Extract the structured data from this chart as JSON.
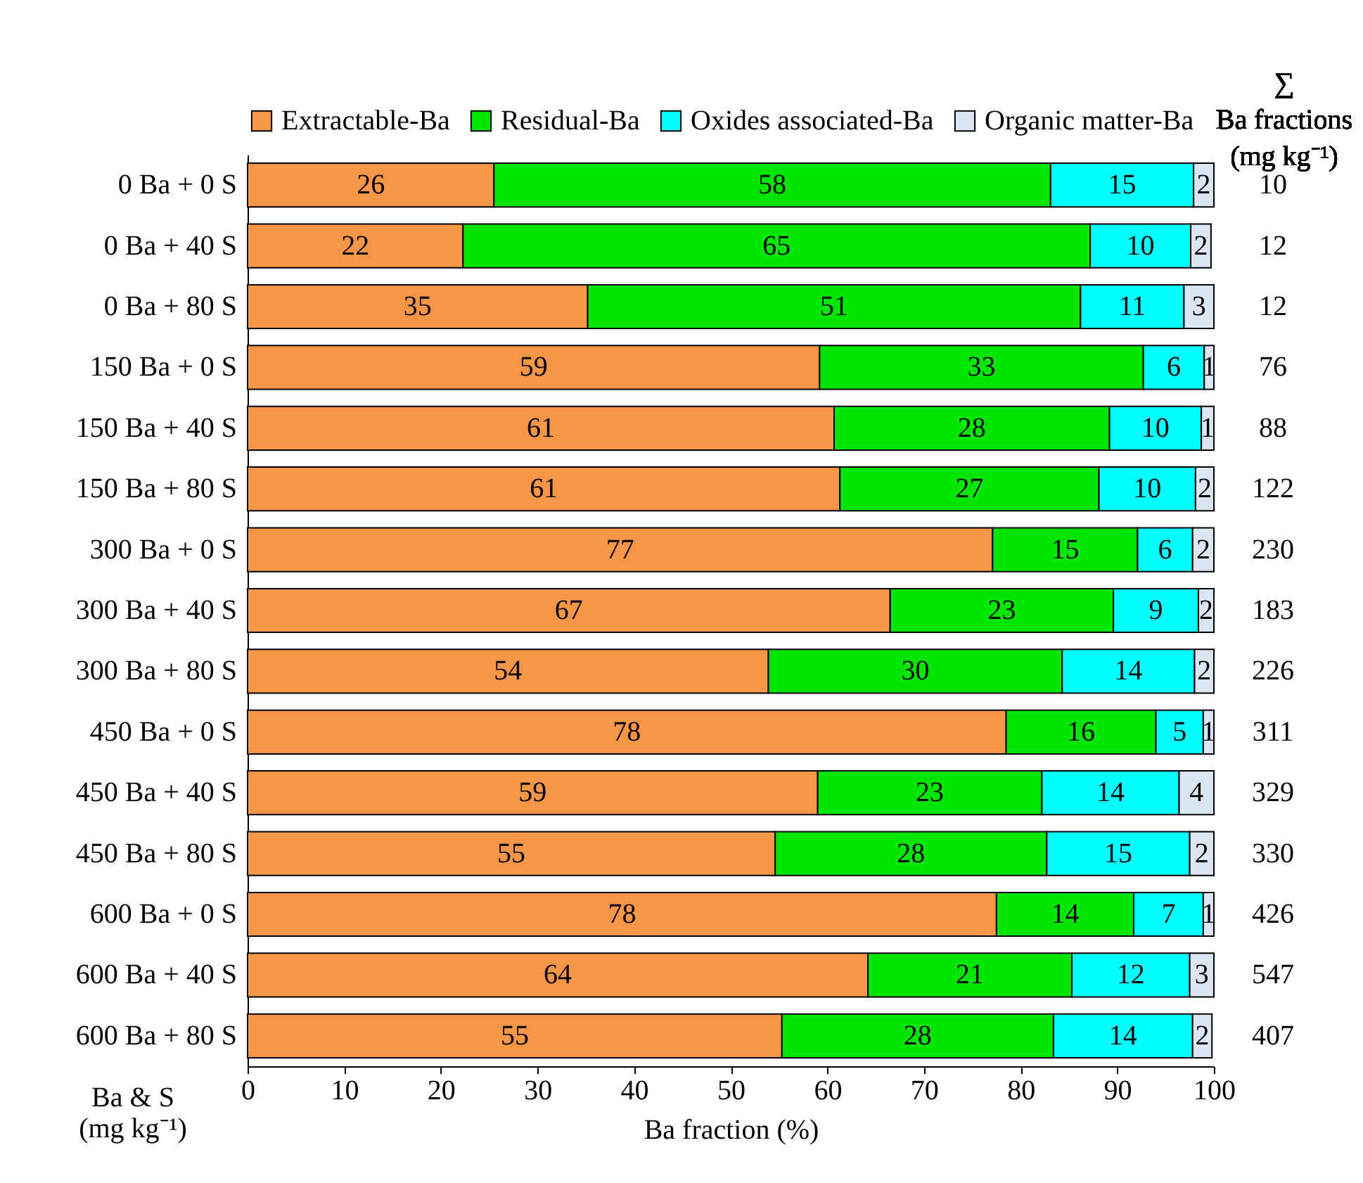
{
  "chart_data": {
    "type": "bar",
    "orientation": "horizontal",
    "stacked": true,
    "categories": [
      "0 Ba + 0 S",
      "0 Ba + 40 S",
      "0 Ba + 80 S",
      "150 Ba + 0 S",
      "150 Ba + 40 S",
      "150 Ba + 80 S",
      "300 Ba + 0 S",
      "300 Ba + 40 S",
      "300 Ba + 80 S",
      "450 Ba + 0 S",
      "450 Ba + 40 S",
      "450 Ba + 80 S",
      "600 Ba + 0 S",
      "600 Ba + 40 S",
      "600 Ba + 80 S"
    ],
    "series": [
      {
        "name": "Extractable-Ba",
        "color": "#f79646",
        "values": [
          25.5,
          22.3,
          35.2,
          59.2,
          60.7,
          61.3,
          77.1,
          66.5,
          53.9,
          78.5,
          59.0,
          54.6,
          77.5,
          64.2,
          55.3
        ],
        "value_labels": [
          "26",
          "22",
          "35",
          "59",
          "61",
          "61",
          "77",
          "67",
          "54",
          "78",
          "59",
          "55",
          "78",
          "64",
          "55"
        ]
      },
      {
        "name": "Residual-Ba",
        "color": "#00e600",
        "values": [
          57.6,
          64.9,
          51.0,
          33.5,
          28.5,
          26.8,
          15.0,
          23.1,
          30.4,
          15.5,
          23.2,
          28.1,
          14.2,
          21.1,
          28.1
        ],
        "value_labels": [
          "58",
          "65",
          "51",
          "33",
          "28",
          "27",
          "15",
          "23",
          "30",
          "16",
          "23",
          "28",
          "14",
          "21",
          "28"
        ]
      },
      {
        "name": "Oxides associated-Ba",
        "color": "#00ffff",
        "values": [
          14.8,
          10.4,
          10.7,
          6.3,
          9.5,
          10.0,
          5.7,
          8.8,
          13.7,
          4.9,
          14.2,
          14.8,
          7.2,
          12.2,
          14.4
        ],
        "value_labels": [
          "15",
          "10",
          "11",
          "6",
          "10",
          "10",
          "6",
          "9",
          "14",
          "5",
          "14",
          "15",
          "7",
          "12",
          "14"
        ]
      },
      {
        "name": "Organic matter-Ba",
        "color": "#dce6f2",
        "values": [
          2.1,
          2.1,
          3.1,
          1.0,
          1.3,
          1.9,
          2.2,
          1.6,
          2.0,
          1.1,
          3.6,
          2.5,
          1.1,
          2.5,
          2.0
        ],
        "value_labels": [
          "2",
          "2",
          "3",
          "1",
          "1",
          "2",
          "2",
          "2",
          "2",
          "1",
          "4",
          "2",
          "1",
          "3",
          "2"
        ]
      }
    ],
    "y2_categories": [
      "10",
      "12",
      "12",
      "76",
      "88",
      "122",
      "230",
      "183",
      "226",
      "311",
      "329",
      "330",
      "426",
      "547",
      "407"
    ],
    "y2label": "∑\nBa fractions\n(mg kg⁻¹)",
    "xlim": [
      0,
      100
    ],
    "xticks": [
      0,
      10,
      20,
      30,
      40,
      50,
      60,
      70,
      80,
      90,
      100
    ],
    "xlabel": "Ba fraction (%)",
    "ylabel": "Ba & S\n(mg kg⁻¹)",
    "legend": "top"
  }
}
